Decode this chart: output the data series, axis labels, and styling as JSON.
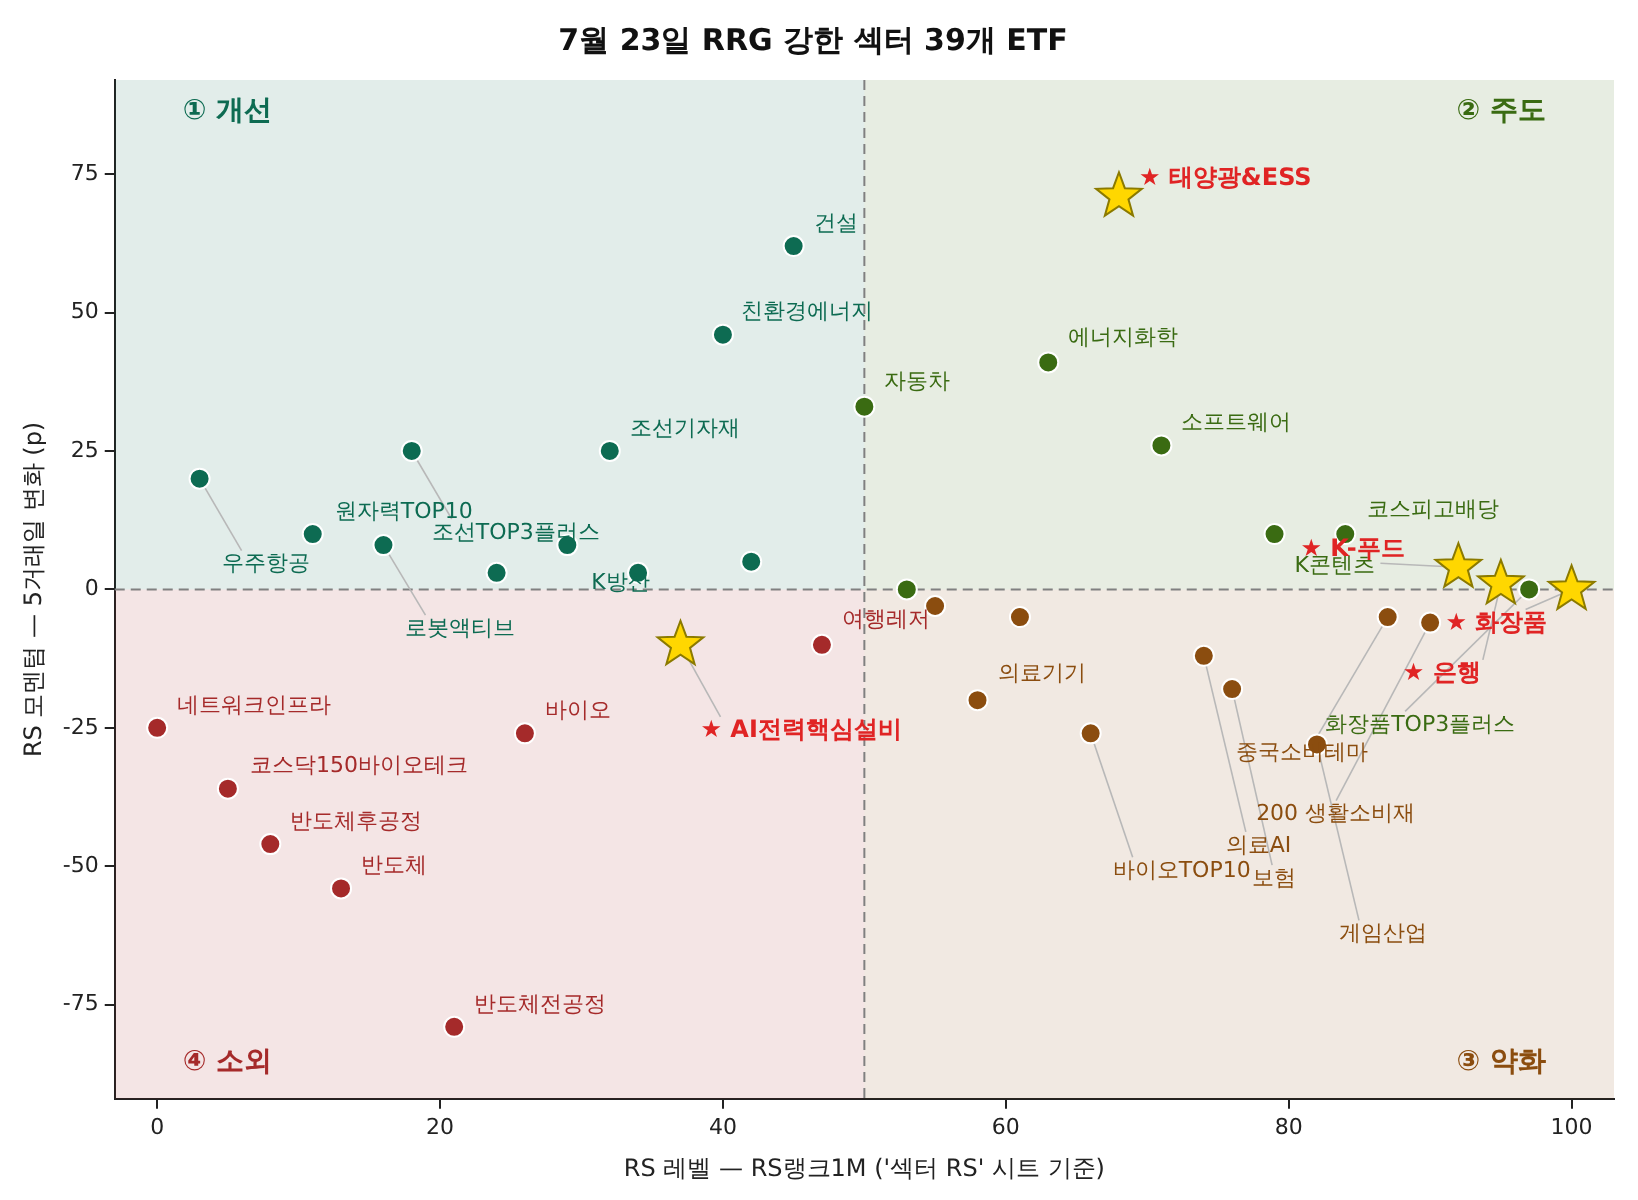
{
  "chart_data": {
    "type": "scatter",
    "title": "7월 23일 RRG 강한 섹터 39개 ETF",
    "xlabel": "RS 레벨 — RS랭크1M ('섹터 RS' 시트 기준)",
    "ylabel": "RS 모멘텀 — 5거래일 변화 (p)",
    "xlim": [
      -3,
      103
    ],
    "ylim": [
      -92,
      92
    ],
    "xticks": [
      0,
      20,
      40,
      60,
      80,
      100
    ],
    "yticks": [
      -75,
      -50,
      -25,
      0,
      25,
      50,
      75
    ],
    "grid": false,
    "legend": false,
    "marker": "circle",
    "ref_lines": [
      {
        "axis": "x",
        "value": 50,
        "color": "#808080",
        "line_style": "dashed"
      },
      {
        "axis": "y",
        "value": 0,
        "color": "#808080",
        "line_style": "dashed"
      }
    ],
    "series": [
      {
        "color": "#0d6b52",
        "x": [
          3,
          11,
          18,
          16,
          29,
          32,
          40,
          45,
          24,
          34,
          42
        ],
        "values": [
          20,
          10,
          25,
          8,
          8,
          25,
          46,
          62,
          3,
          3,
          5
        ]
      },
      {
        "color": "#3a6b12",
        "x": [
          50,
          63,
          71,
          79,
          84,
          97,
          53
        ],
        "values": [
          33,
          41,
          26,
          10,
          10,
          0,
          0
        ]
      },
      {
        "color": "#8b4d0f",
        "x": [
          58,
          66,
          74,
          76,
          82,
          87,
          90,
          55,
          61
        ],
        "values": [
          -20,
          -26,
          -12,
          -18,
          -28,
          -5,
          -6,
          -3,
          -5
        ]
      },
      {
        "color": "#a52a2a",
        "x": [
          0,
          5,
          8,
          13,
          21,
          26,
          47
        ],
        "values": [
          -25,
          -36,
          -46,
          -54,
          -79,
          -26,
          -10
        ]
      },
      {
        "color": "#ffd700",
        "marker": "star",
        "x": [
          68,
          92,
          95,
          100,
          37
        ],
        "values": [
          71,
          4,
          1,
          0,
          -10
        ]
      }
    ],
    "annotations": [
      "① 개선",
      "② 주도",
      "③ 약화",
      "④ 소외",
      {
        "text": "우주항공",
        "x": 3,
        "y": 20
      },
      {
        "text": "원자력TOP10",
        "x": 11,
        "y": 10
      },
      {
        "text": "조선TOP3플러스",
        "x": 18,
        "y": 25
      },
      {
        "text": "로봇액티브",
        "x": 16,
        "y": 8
      },
      {
        "text": "K방산",
        "x": 29,
        "y": 8
      },
      {
        "text": "조선기자재",
        "x": 32,
        "y": 25
      },
      {
        "text": "친환경에너지",
        "x": 40,
        "y": 46
      },
      {
        "text": "건설",
        "x": 45,
        "y": 62
      },
      {
        "text": "자동차",
        "x": 50,
        "y": 33
      },
      {
        "text": "에너지화학",
        "x": 63,
        "y": 41
      },
      {
        "text": "소프트웨어",
        "x": 71,
        "y": 26
      },
      {
        "text": "K콘텐츠",
        "x": 79,
        "y": 10
      },
      {
        "text": "코스피고배당",
        "x": 84,
        "y": 10
      },
      {
        "text": "화장품TOP3플러스",
        "x": 97,
        "y": 0
      },
      {
        "text": "★ 태양광&ESS",
        "x": 68,
        "y": 71
      },
      {
        "text": "★ K-푸드",
        "x": 92,
        "y": 4
      },
      {
        "text": "★ 은행",
        "x": 95,
        "y": 1
      },
      {
        "text": "★ 화장품",
        "x": 100,
        "y": 0
      },
      {
        "text": "★ AI전력핵심설비",
        "x": 37,
        "y": -10
      },
      {
        "text": "네트워크인프라",
        "x": 0,
        "y": -25
      },
      {
        "text": "코스닥150바이오테크",
        "x": 5,
        "y": -36
      },
      {
        "text": "반도체후공정",
        "x": 8,
        "y": -46
      },
      {
        "text": "반도체",
        "x": 13,
        "y": -54
      },
      {
        "text": "반도체전공정",
        "x": 21,
        "y": -79
      },
      {
        "text": "바이오",
        "x": 26,
        "y": -26
      },
      {
        "text": "여행레저",
        "x": 47,
        "y": -10
      },
      {
        "text": "의료기기",
        "x": 58,
        "y": -20
      },
      {
        "text": "바이오TOP10",
        "x": 66,
        "y": -26
      },
      {
        "text": "의료AI",
        "x": 74,
        "y": -12
      },
      {
        "text": "보험",
        "x": 76,
        "y": -18
      },
      {
        "text": "게임산업",
        "x": 82,
        "y": -28
      },
      {
        "text": "중국소비테마",
        "x": 87,
        "y": -5
      },
      {
        "text": "200 생활소비재",
        "x": 90,
        "y": -6
      }
    ]
  }
}
